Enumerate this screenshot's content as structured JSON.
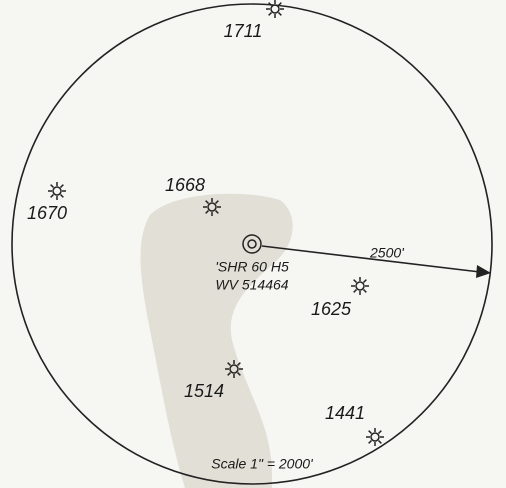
{
  "wells": [
    {
      "label": "1711"
    },
    {
      "label": "1670"
    },
    {
      "label": "1668"
    },
    {
      "label": "1625"
    },
    {
      "label": "1514"
    },
    {
      "label": "1441"
    }
  ],
  "center": {
    "lines": [
      "'SHR 60 H5",
      "WV 514464"
    ]
  },
  "radius_label": "2500'",
  "scale": "Scale 1\" = 2000'"
}
